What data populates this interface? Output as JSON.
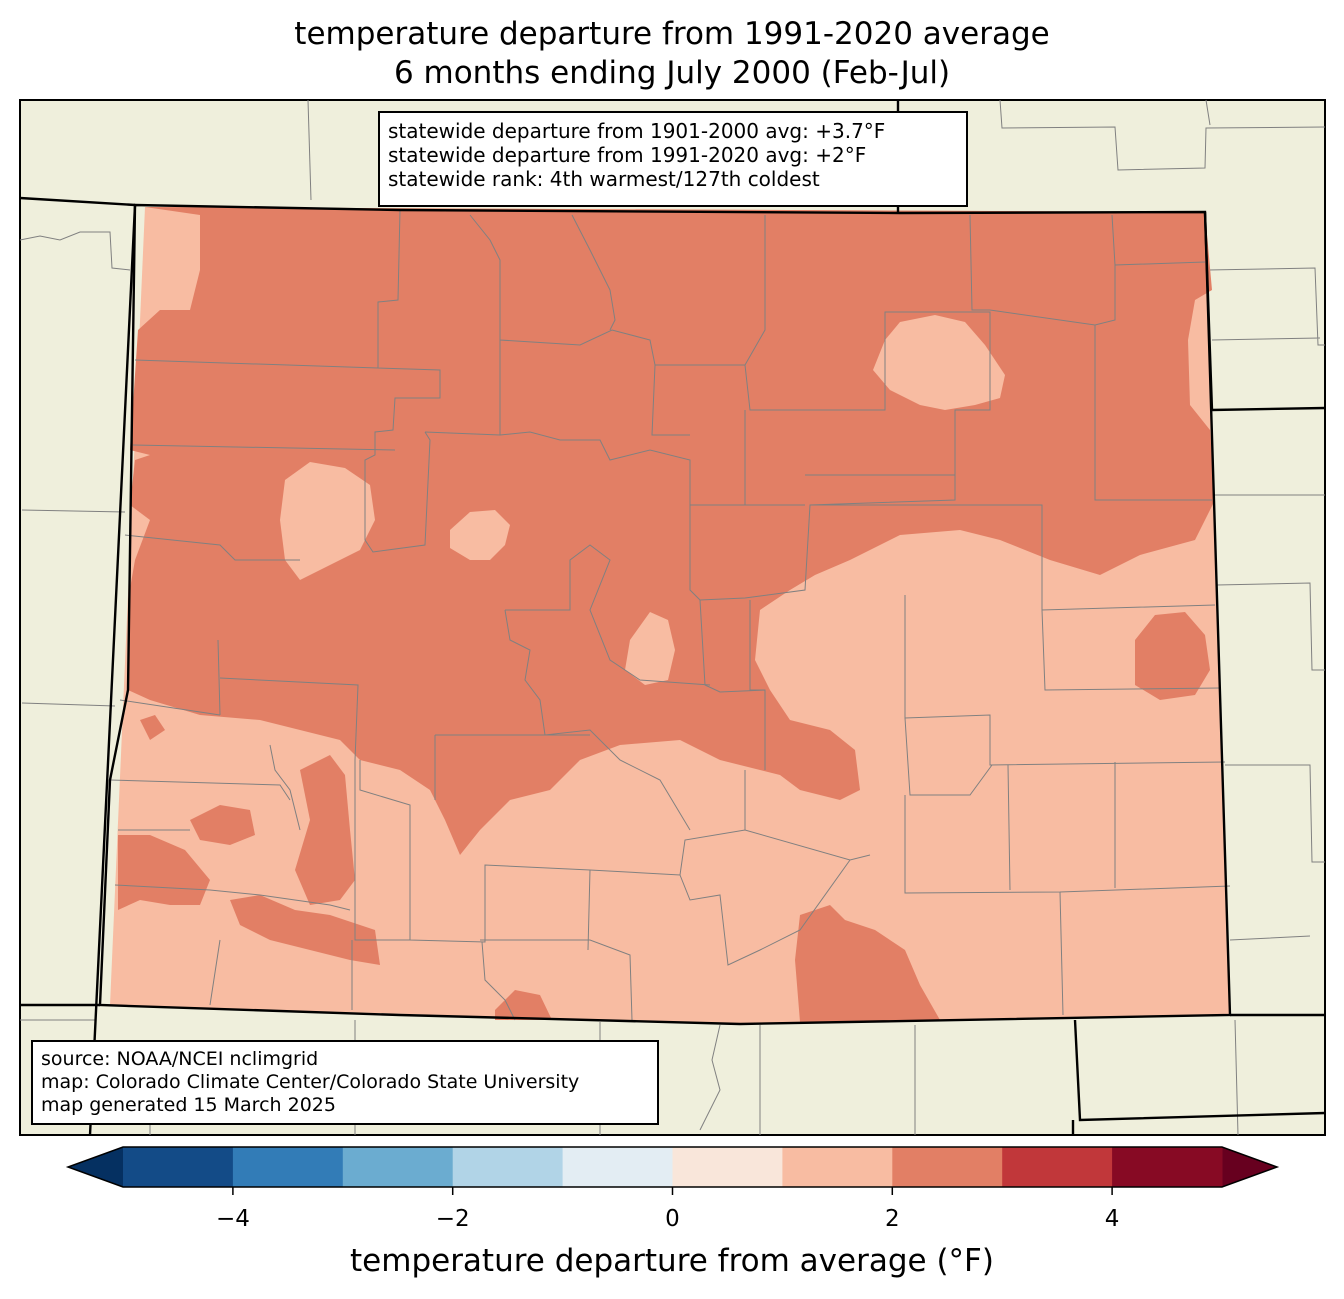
{
  "title": {
    "line1": "temperature departure from 1991-2020 average",
    "line2": "6 months ending July 2000 (Feb-Jul)"
  },
  "stats_box": {
    "line1": "statewide departure from 1901-2000 avg: +3.7°F",
    "line2": "statewide departure from 1991-2020 avg: +2°F",
    "line3": "statewide rank: 4th warmest/127th coldest"
  },
  "source_box": {
    "line1": "source: NOAA/NCEI nclimgrid",
    "line2": "map: Colorado Climate Center/Colorado State University",
    "line3": "map generated 15 March 2025"
  },
  "colorbar": {
    "label": "temperature departure from average (°F)",
    "range": [
      -5,
      5
    ],
    "ticks": [
      {
        "value": -4,
        "label": "−4"
      },
      {
        "value": -2,
        "label": "−2"
      },
      {
        "value": 0,
        "label": "0"
      },
      {
        "value": 2,
        "label": "2"
      },
      {
        "value": 4,
        "label": "4"
      }
    ],
    "bins": [
      {
        "from": -5,
        "to": -4,
        "color": "#134b87"
      },
      {
        "from": -4,
        "to": -3,
        "color": "#327cb7"
      },
      {
        "from": -3,
        "to": -2,
        "color": "#6bacd0"
      },
      {
        "from": -2,
        "to": -1,
        "color": "#b1d4e7"
      },
      {
        "from": -1,
        "to": 0,
        "color": "#e3edf3"
      },
      {
        "from": 0,
        "to": 1,
        "color": "#f9e6da"
      },
      {
        "from": 1,
        "to": 2,
        "color": "#f8bca2"
      },
      {
        "from": 2,
        "to": 3,
        "color": "#e27f65"
      },
      {
        "from": 3,
        "to": 4,
        "color": "#c1373a"
      },
      {
        "from": 4,
        "to": 5,
        "color": "#870a24"
      }
    ],
    "under_color": "#053061",
    "over_color": "#67001f"
  },
  "colors": {
    "land_outside": "#efefdc",
    "county_lines": "#808080",
    "state_lines": "#000000"
  }
}
